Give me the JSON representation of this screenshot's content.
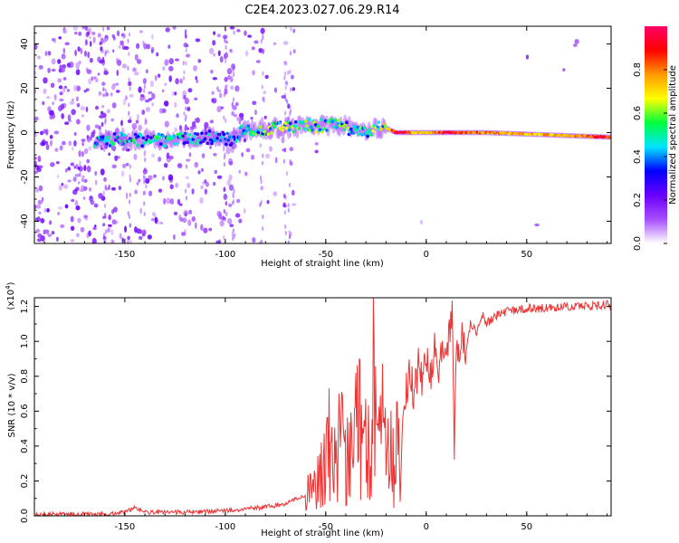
{
  "title": "C2E4.2023.027.06.29.R14",
  "chart_data": [
    {
      "type": "heatmap",
      "xlabel": "Height of straight line (km)",
      "ylabel": "Frequency (Hz)",
      "xlim": [
        -195,
        92
      ],
      "ylim": [
        -50,
        48
      ],
      "xticks": [
        -150,
        -100,
        -50,
        0,
        50
      ],
      "yticks": [
        -40,
        -20,
        0,
        20,
        40
      ],
      "colorbar": {
        "label": "Normalized spectral amplitude",
        "range": [
          0,
          1
        ],
        "ticks": [
          "0.0",
          "0.2",
          "0.4",
          "0.6",
          "0.8"
        ],
        "colors": [
          "#ffffff",
          "#a64dff",
          "#6a00ff",
          "#0000ff",
          "#00e5ff",
          "#00ff3c",
          "#ffff00",
          "#ff9900",
          "#ff0000",
          "#ff0066"
        ]
      },
      "ridge": [
        {
          "x": -165,
          "y": -4,
          "amp": 0.4
        },
        {
          "x": -150,
          "y": -3,
          "amp": 0.45
        },
        {
          "x": -130,
          "y": -3,
          "amp": 0.45
        },
        {
          "x": -110,
          "y": -2,
          "amp": 0.4
        },
        {
          "x": -98,
          "y": -3,
          "amp": 0.35
        },
        {
          "x": -90,
          "y": 1,
          "amp": 0.45
        },
        {
          "x": -75,
          "y": 2,
          "amp": 0.55
        },
        {
          "x": -60,
          "y": 3,
          "amp": 0.55
        },
        {
          "x": -45,
          "y": 3,
          "amp": 0.5
        },
        {
          "x": -30,
          "y": 1,
          "amp": 0.5
        },
        {
          "x": -20,
          "y": 2,
          "amp": 0.6
        },
        {
          "x": -15,
          "y": 0,
          "amp": 0.95
        },
        {
          "x": 0,
          "y": 0,
          "amp": 0.7
        },
        {
          "x": 12,
          "y": 0,
          "amp": 0.95
        },
        {
          "x": 30,
          "y": 0,
          "amp": 0.8
        },
        {
          "x": 60,
          "y": -1,
          "amp": 0.75
        },
        {
          "x": 90,
          "y": -2,
          "amp": 0.85
        }
      ]
    },
    {
      "type": "line",
      "xlabel": "Height of straight line (km)",
      "ylabel": "SNR (10 * v/v)",
      "yunit": "(x10",
      "yunit_exp": "4",
      "yunit_close": ")",
      "xlim": [
        -195,
        92
      ],
      "ylim": [
        0,
        1.25
      ],
      "xticks": [
        -150,
        -100,
        -50,
        0,
        50
      ],
      "yticks": [
        0.0,
        0.2,
        0.4,
        0.6,
        0.8,
        1.0,
        1.2
      ],
      "color": "#ee3333",
      "series": [
        {
          "x": [
            -195,
            -180,
            -160,
            -150,
            -145,
            -140,
            -120,
            -100,
            -90,
            -80,
            -70,
            -60,
            -55,
            -52,
            -50,
            -48,
            -45,
            -42,
            -40,
            -38,
            -36,
            -34,
            -32,
            -30,
            -28,
            -26,
            -24,
            -22,
            -20,
            -18,
            -16,
            -14,
            -13,
            -12,
            -10,
            -8,
            -6,
            -4,
            -2,
            0,
            2,
            4,
            6,
            8,
            10,
            12,
            13,
            14,
            15,
            16,
            18,
            20,
            22,
            25,
            28,
            30,
            35,
            40,
            45,
            50,
            60,
            70,
            80,
            90,
            92
          ],
          "y": [
            0.01,
            0.01,
            0.01,
            0.02,
            0.05,
            0.02,
            0.02,
            0.03,
            0.04,
            0.05,
            0.07,
            0.12,
            0.18,
            0.25,
            0.35,
            0.42,
            0.3,
            0.48,
            0.25,
            0.55,
            0.3,
            0.7,
            0.35,
            0.6,
            0.4,
            0.85,
            0.3,
            0.55,
            0.4,
            0.6,
            0.2,
            0.5,
            0.1,
            0.6,
            0.75,
            0.8,
            0.7,
            0.85,
            0.78,
            0.9,
            0.82,
            0.95,
            0.75,
            1.0,
            0.85,
            1.1,
            1.25,
            0.35,
            0.9,
            0.95,
            1.05,
            0.95,
            1.1,
            1.05,
            1.15,
            1.1,
            1.15,
            1.17,
            1.18,
            1.19,
            1.19,
            1.2,
            1.2,
            1.21,
            1.2
          ]
        }
      ]
    }
  ]
}
